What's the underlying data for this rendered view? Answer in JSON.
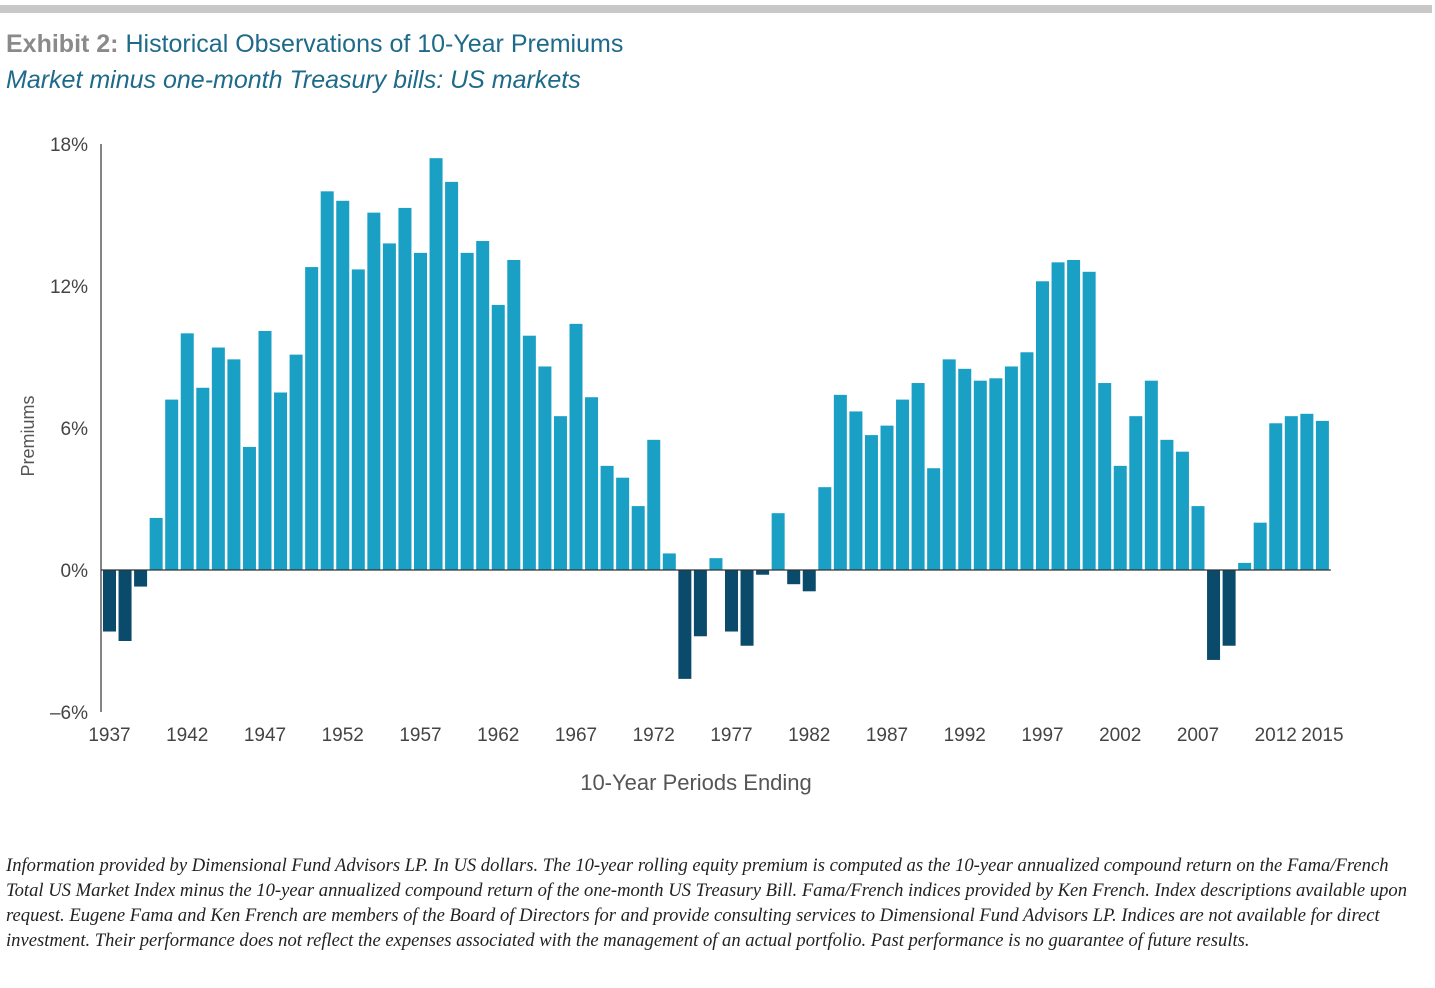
{
  "header": {
    "title_lead": "Exhibit 2:",
    "title_rest": " Historical Observations of 10-Year Premiums",
    "subtitle": "Market minus one-month Treasury bills: US markets"
  },
  "footnote": "Information provided by Dimensional Fund Advisors LP. In US dollars. The 10-year rolling equity premium is computed as the 10-year annualized compound return on the Fama/French Total US Market Index minus the 10-year annualized compound return of the one-month US Treasury Bill. Fama/French indices provided by Ken French. Index descriptions available upon request. Eugene Fama and Ken French are members of the Board of Directors for and provide consulting services to Dimensional Fund Advisors LP. Indices are not available for direct investment. Their performance does not reflect the expenses associated with the management of an actual portfolio. Past performance is no guarantee of future results.",
  "chart_data": {
    "type": "bar",
    "title": "",
    "xlabel": "10-Year Periods Ending",
    "ylabel": "Premiums",
    "ylim": [
      -6,
      18
    ],
    "yticks": [
      -6,
      0,
      6,
      12,
      18
    ],
    "ytick_labels": [
      "–6%",
      "0%",
      "6%",
      "12%",
      "18%"
    ],
    "xtick_labels": [
      "1937",
      "1942",
      "1947",
      "1952",
      "1957",
      "1962",
      "1967",
      "1972",
      "1977",
      "1982",
      "1987",
      "1992",
      "1997",
      "2002",
      "2007",
      "2012",
      "2015"
    ],
    "grid": false,
    "legend": "none",
    "colors": {
      "positive": "#1aa0c4",
      "negative": "#0a4a6b",
      "axis": "#333333"
    },
    "categories": [
      "1937",
      "1938",
      "1939",
      "1940",
      "1941",
      "1942",
      "1943",
      "1944",
      "1945",
      "1946",
      "1947",
      "1948",
      "1949",
      "1950",
      "1951",
      "1952",
      "1953",
      "1954",
      "1955",
      "1956",
      "1957",
      "1958",
      "1959",
      "1960",
      "1961",
      "1962",
      "1963",
      "1964",
      "1965",
      "1966",
      "1967",
      "1968",
      "1969",
      "1970",
      "1971",
      "1972",
      "1973",
      "1974",
      "1975",
      "1976",
      "1977",
      "1978",
      "1979",
      "1980",
      "1981",
      "1982",
      "1983",
      "1984",
      "1985",
      "1986",
      "1987",
      "1988",
      "1989",
      "1990",
      "1991",
      "1992",
      "1993",
      "1994",
      "1995",
      "1996",
      "1997",
      "1998",
      "1999",
      "2000",
      "2001",
      "2002",
      "2003",
      "2004",
      "2005",
      "2006",
      "2007",
      "2008",
      "2009",
      "2010",
      "2011",
      "2012",
      "2013",
      "2014",
      "2015"
    ],
    "values": [
      -2.6,
      -3.0,
      -0.7,
      2.2,
      7.2,
      10.0,
      7.7,
      9.4,
      8.9,
      5.2,
      10.1,
      7.5,
      9.1,
      12.8,
      16.0,
      15.6,
      12.7,
      15.1,
      13.8,
      15.3,
      13.4,
      17.4,
      16.4,
      13.4,
      13.9,
      11.2,
      13.1,
      9.9,
      8.6,
      6.5,
      10.4,
      7.3,
      4.4,
      3.9,
      2.7,
      5.5,
      0.7,
      -4.6,
      -2.8,
      0.5,
      -2.6,
      -3.2,
      -0.2,
      2.4,
      -0.6,
      -0.9,
      3.5,
      7.4,
      6.7,
      5.7,
      6.1,
      7.2,
      7.9,
      4.3,
      8.9,
      8.5,
      8.0,
      8.1,
      8.6,
      9.2,
      12.2,
      13.0,
      13.1,
      12.6,
      7.9,
      4.4,
      6.5,
      8.0,
      5.5,
      5.0,
      2.7,
      -3.8,
      -3.2,
      0.3,
      2.0,
      6.2,
      6.5,
      6.6,
      6.3
    ]
  }
}
